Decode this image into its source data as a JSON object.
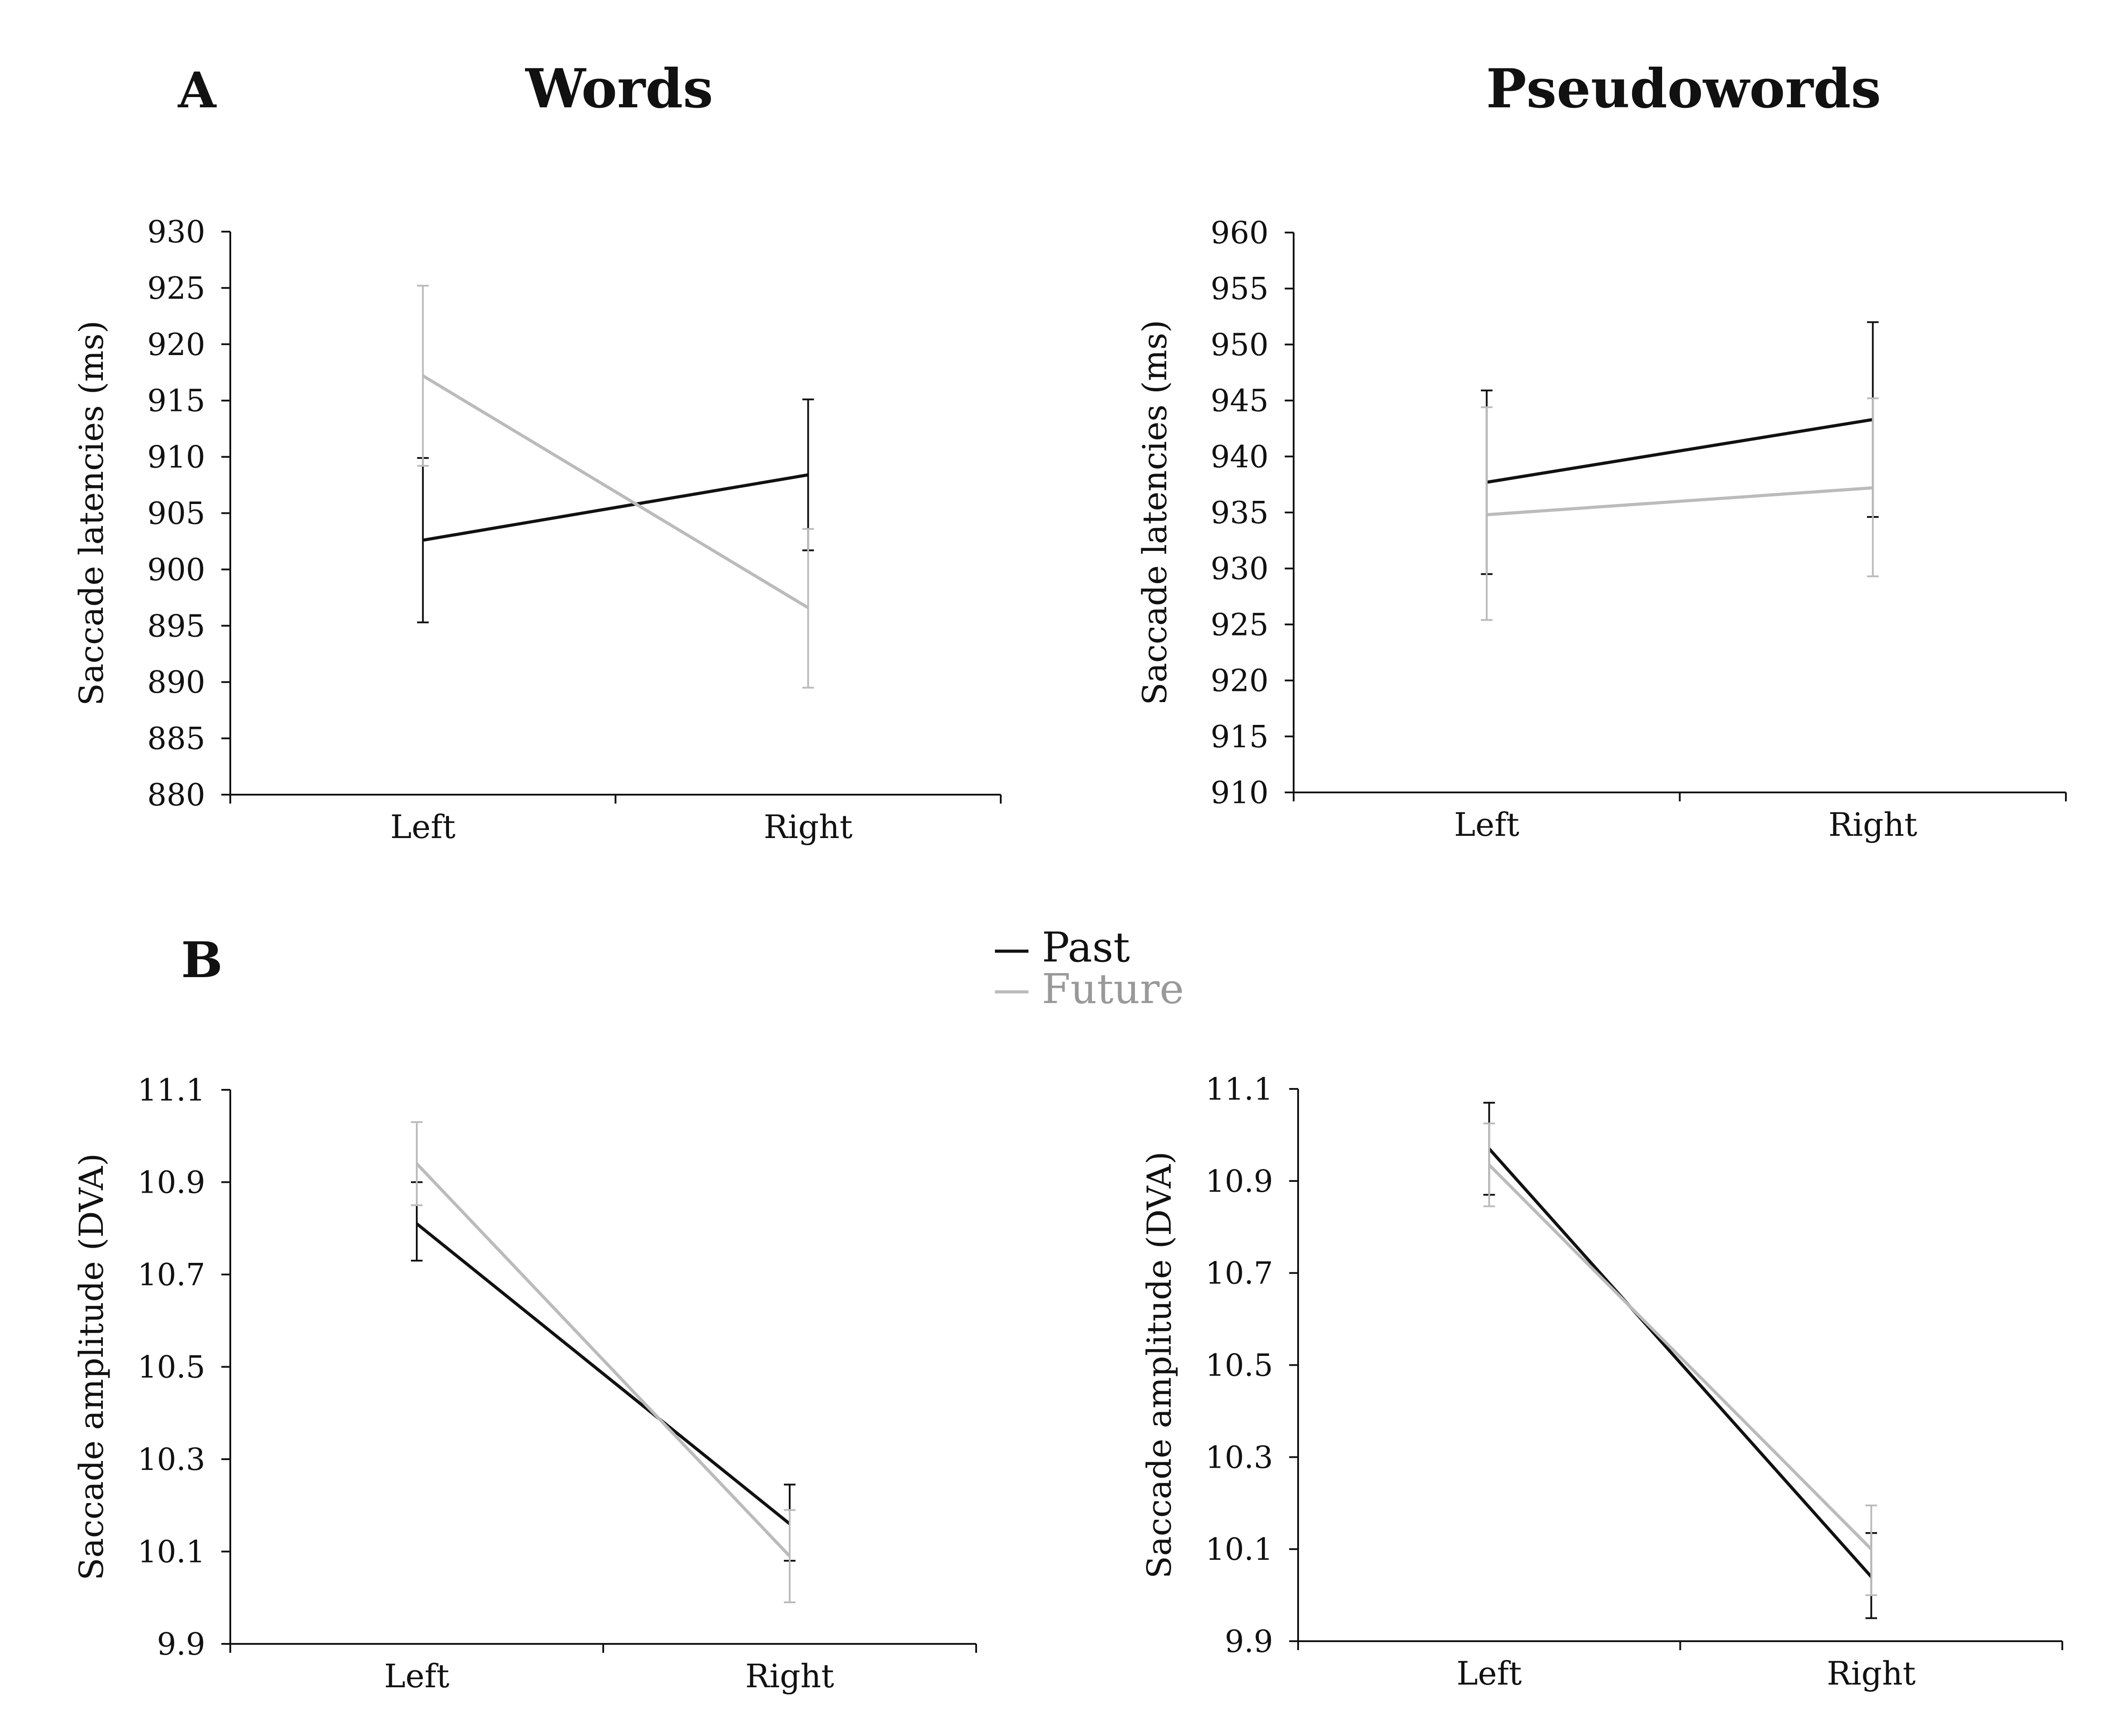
{
  "panels": {
    "a_letter": "A",
    "b_letter": "B",
    "col_left_title": "Words",
    "col_right_title": "Pseudowords"
  },
  "legend": {
    "items": [
      {
        "label": "Past",
        "color": "#111111"
      },
      {
        "label": "Future",
        "color": "#999999"
      }
    ]
  },
  "chart_data": [
    {
      "type": "line",
      "title": "Words",
      "categories": [
        "Left",
        "Right"
      ],
      "ylabel": "Saccade latencies (ms)",
      "ylim": [
        880,
        930
      ],
      "yticks": [
        "880",
        "885",
        "890",
        "895",
        "900",
        "905",
        "910",
        "915",
        "920",
        "925",
        "930"
      ],
      "series": [
        {
          "name": "Past",
          "color": "#111111",
          "values": [
            902.6,
            908.4
          ],
          "err_low": [
            895.3,
            901.7
          ],
          "err_high": [
            909.9,
            915.1
          ]
        },
        {
          "name": "Future",
          "color": "#bbbbbb",
          "values": [
            917.2,
            896.6
          ],
          "err_low": [
            909.2,
            889.5
          ],
          "err_high": [
            925.2,
            903.6
          ]
        }
      ]
    },
    {
      "type": "line",
      "title": "Pseudowords",
      "categories": [
        "Left",
        "Right"
      ],
      "ylabel": "Saccade latencies (ms)",
      "ylim": [
        910,
        960
      ],
      "yticks": [
        "910",
        "915",
        "920",
        "925",
        "930",
        "935",
        "940",
        "945",
        "950",
        "955",
        "960"
      ],
      "series": [
        {
          "name": "Past",
          "color": "#111111",
          "values": [
            937.7,
            943.3
          ],
          "err_low": [
            929.5,
            934.6
          ],
          "err_high": [
            945.9,
            952.0
          ]
        },
        {
          "name": "Future",
          "color": "#bbbbbb",
          "values": [
            934.8,
            937.2
          ],
          "err_low": [
            925.4,
            929.3
          ],
          "err_high": [
            944.4,
            945.2
          ]
        }
      ]
    },
    {
      "type": "line",
      "title": "",
      "categories": [
        "Left",
        "Right"
      ],
      "ylabel": "Saccade amplitude (DVA)",
      "ylim": [
        9.9,
        11.1
      ],
      "yticks": [
        "9.9",
        "10.1",
        "10.3",
        "10.5",
        "10.7",
        "10.9",
        "11.1"
      ],
      "series": [
        {
          "name": "Past",
          "color": "#111111",
          "values": [
            10.81,
            10.16
          ],
          "err_low": [
            10.73,
            10.08
          ],
          "err_high": [
            10.9,
            10.245
          ]
        },
        {
          "name": "Future",
          "color": "#bbbbbb",
          "values": [
            10.94,
            10.09
          ],
          "err_low": [
            10.85,
            9.99
          ],
          "err_high": [
            11.03,
            10.19
          ]
        }
      ]
    },
    {
      "type": "line",
      "title": "",
      "categories": [
        "Left",
        "Right"
      ],
      "ylabel": "Saccade amplitude (DVA)",
      "ylim": [
        9.9,
        11.1
      ],
      "yticks": [
        "9.9",
        "10.1",
        "10.3",
        "10.5",
        "10.7",
        "10.9",
        "11.1"
      ],
      "series": [
        {
          "name": "Past",
          "color": "#111111",
          "values": [
            10.97,
            10.04
          ],
          "err_low": [
            10.87,
            9.95
          ],
          "err_high": [
            11.07,
            10.135
          ]
        },
        {
          "name": "Future",
          "color": "#bbbbbb",
          "values": [
            10.935,
            10.1
          ],
          "err_low": [
            10.845,
            10.0
          ],
          "err_high": [
            11.025,
            10.195
          ]
        }
      ]
    }
  ]
}
